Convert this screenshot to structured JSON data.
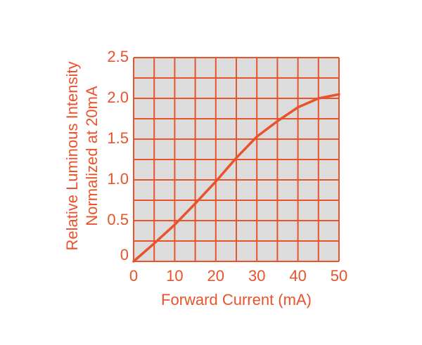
{
  "chart_data": {
    "type": "line",
    "xlabel": "Forward Current (mA)",
    "ylabel": [
      "Relative Luminous Intensity",
      "Normalized at 20mA"
    ],
    "x": [
      0,
      5,
      10,
      15,
      20,
      25,
      30,
      35,
      40,
      45,
      50
    ],
    "series": [
      {
        "color": "#e8532b",
        "values": [
          0,
          0.22,
          0.45,
          0.71,
          0.98,
          1.27,
          1.53,
          1.72,
          1.89,
          2.0,
          2.05
        ]
      }
    ],
    "xlim": [
      0,
      50
    ],
    "ylim": [
      0,
      2.5
    ],
    "xticks": [
      0,
      10,
      20,
      30,
      40,
      50
    ],
    "yticks": [
      0,
      0.5,
      {
        "value": 1,
        "label": "1.0"
      },
      1.5,
      {
        "value": 2,
        "label": "2.0"
      },
      2.5
    ],
    "xgrid": [
      0,
      5,
      10,
      15,
      20,
      25,
      30,
      35,
      40,
      45,
      50
    ],
    "ygrid": [
      0,
      0.25,
      0.5,
      0.75,
      1,
      1.25,
      1.5,
      1.75,
      2,
      2.25,
      2.5
    ],
    "grid": true,
    "grid_color": "#e8532b",
    "plot_background": "#dcdcdc"
  }
}
